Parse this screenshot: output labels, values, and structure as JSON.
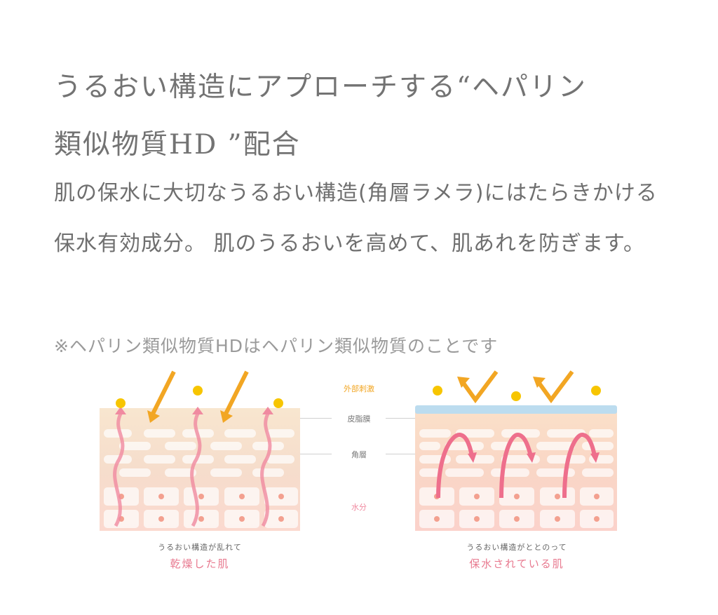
{
  "heading": {
    "line1": "うるおい構造にアプローチする“ヘパリン",
    "line2": "類似物質HD ”配合"
  },
  "description": "肌の保水に大切なうるおい構造(角層ラメラ)にはたらきかける保水有効成分。 肌のうるおいを高めて、肌あれを防ぎます。",
  "note": "※ヘパリン類似物質HDはヘパリン類似物質のことです",
  "diagram": {
    "labels": {
      "external": "外部刺激",
      "sebum": "皮脂膜",
      "stratum": "角層",
      "moisture": "水分"
    },
    "left": {
      "subcaption": "うるおい構造が乱れて",
      "caption": "乾燥した肌"
    },
    "right": {
      "subcaption": "うるおい構造がととのって",
      "caption": "保水されている肌"
    },
    "colors": {
      "external": "#f2a623",
      "caption": "#e8798f",
      "moisture": "#f08aa0",
      "barrier": "#bcdcef"
    }
  }
}
